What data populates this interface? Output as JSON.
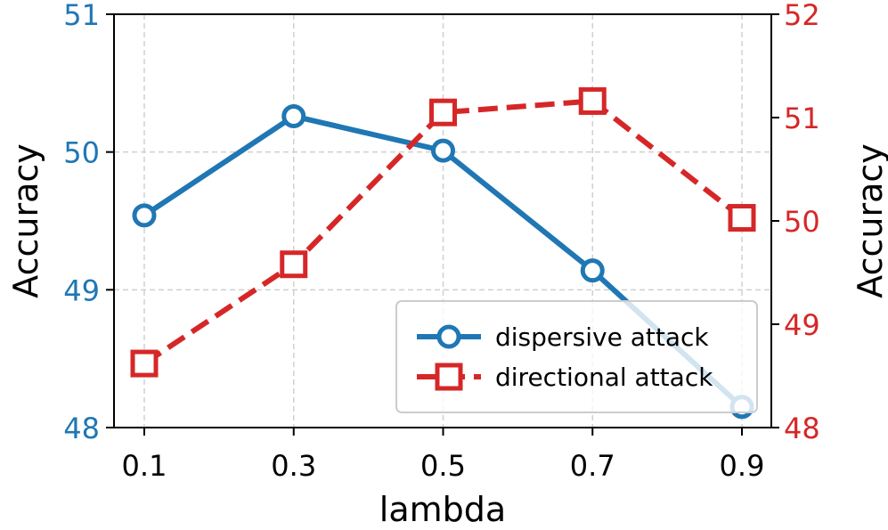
{
  "chart_data": {
    "type": "line",
    "title": "",
    "xlabel": "lambda",
    "ylabel_left": "Accuracy",
    "ylabel_right": "Accuracy",
    "x": [
      0.1,
      0.3,
      0.5,
      0.7,
      0.9
    ],
    "x_tick_labels": [
      "0.1",
      "0.3",
      "0.5",
      "0.7",
      "0.9"
    ],
    "xlim": [
      0.05,
      0.95
    ],
    "ylim_left": [
      48,
      51
    ],
    "ylim_right": [
      48,
      52
    ],
    "y_ticks_left": [
      "48",
      "49",
      "50",
      "51"
    ],
    "y_ticks_right": [
      "48",
      "49",
      "50",
      "51",
      "52"
    ],
    "grid": true,
    "legend_position": "lower-right",
    "series": [
      {
        "name": "dispersive attack",
        "axis": "left",
        "color": "#1f77b4",
        "marker": "circle",
        "linestyle": "solid",
        "values": [
          49.54,
          50.26,
          50.01,
          49.14,
          48.15
        ]
      },
      {
        "name": "directional attack",
        "axis": "right",
        "color": "#d62728",
        "marker": "square",
        "linestyle": "dashed",
        "values": [
          48.62,
          49.58,
          51.05,
          51.16,
          50.03
        ]
      }
    ]
  }
}
